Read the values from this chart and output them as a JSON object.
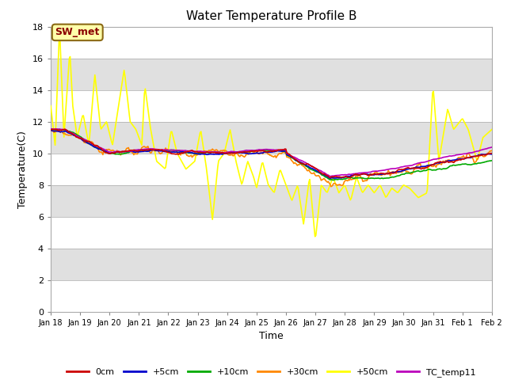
{
  "title": "Water Temperature Profile B",
  "xlabel": "Time",
  "ylabel": "Temperature(C)",
  "ylim": [
    0,
    18
  ],
  "yticks": [
    0,
    2,
    4,
    6,
    8,
    10,
    12,
    14,
    16,
    18
  ],
  "background_color": "#ffffff",
  "band_colors": [
    "#ffffff",
    "#e0e0e0"
  ],
  "annotation_text": "SW_met",
  "series_colors": {
    "0cm": "#cc0000",
    "+5cm": "#0000cc",
    "+10cm": "#00aa00",
    "+30cm": "#ff8800",
    "+50cm": "#ffff00",
    "TC_temp11": "#bb00bb"
  },
  "line_widths": {
    "0cm": 1.2,
    "+5cm": 1.2,
    "+10cm": 1.2,
    "+30cm": 1.2,
    "+50cm": 1.2,
    "TC_temp11": 1.2
  },
  "date_labels": [
    "Jan 18",
    "Jan 19",
    "Jan 20",
    "Jan 21",
    "Jan 22",
    "Jan 23",
    "Jan 24",
    "Jan 25",
    "Jan 26",
    "Jan 27",
    "Jan 28",
    "Jan 29",
    "Jan 30",
    "Jan 31",
    "Feb 1",
    "Feb 2"
  ],
  "num_points": 500
}
